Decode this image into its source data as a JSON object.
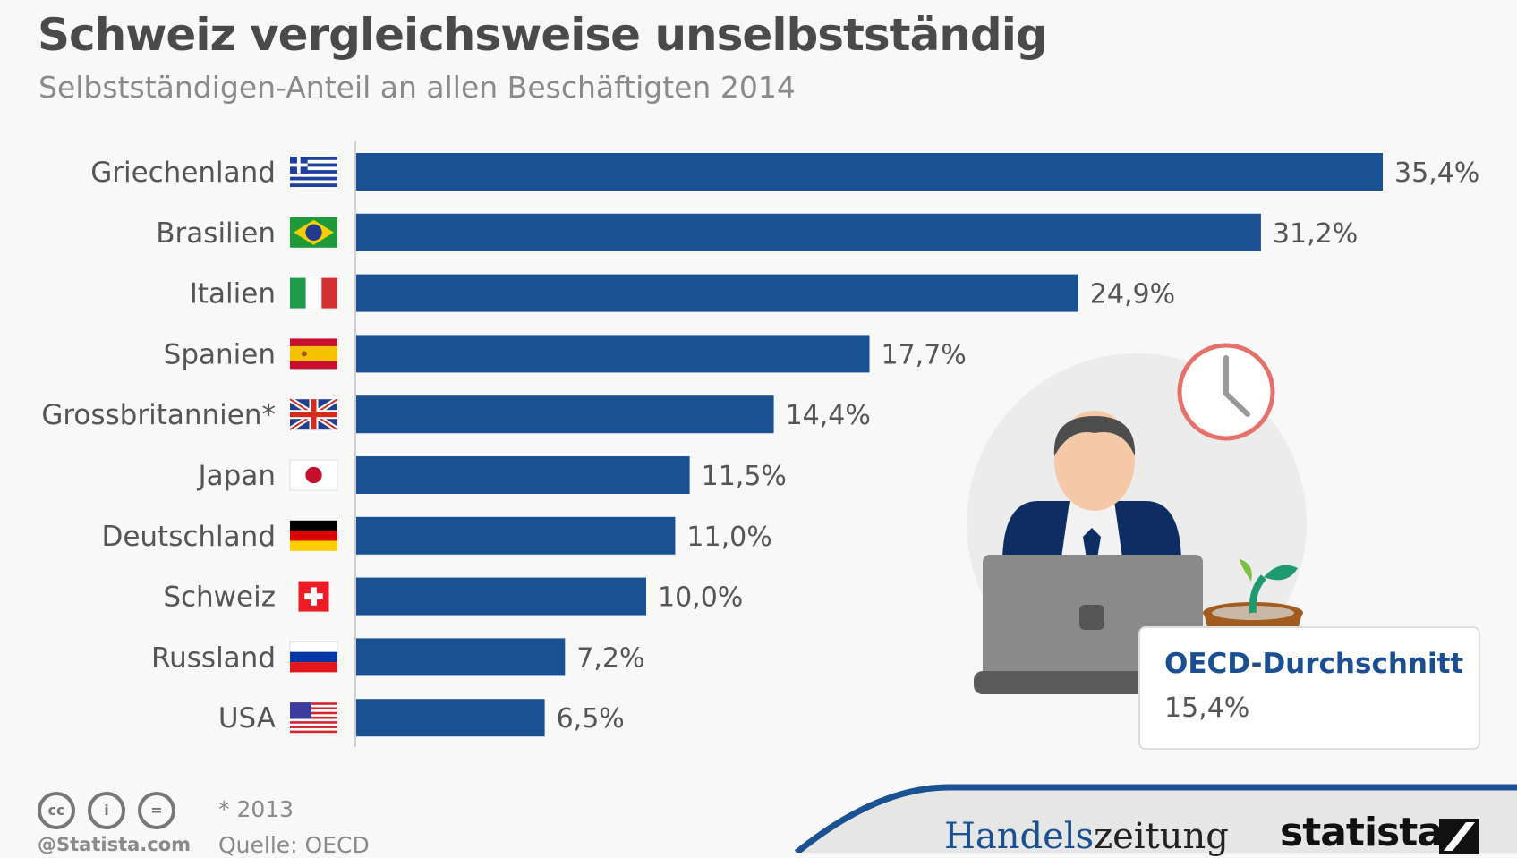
{
  "header": {
    "title": "Schweiz vergleichsweise unselbstständig",
    "subtitle": "Selbstständigen-Anteil an allen Beschäftigten 2014"
  },
  "chart_data": {
    "type": "bar",
    "orientation": "horizontal",
    "title": "Schweiz vergleichsweise unselbstständig",
    "subtitle": "Selbstständigen-Anteil an allen Beschäftigten 2014",
    "xlabel": "",
    "ylabel": "",
    "unit": "%",
    "categories": [
      "Griechenland",
      "Brasilien",
      "Italien",
      "Spanien",
      "Grossbritannien*",
      "Japan",
      "Deutschland",
      "Schweiz",
      "Russland",
      "USA"
    ],
    "values": [
      35.4,
      31.2,
      24.9,
      17.7,
      14.4,
      11.5,
      11.0,
      10.0,
      7.2,
      6.5
    ],
    "value_labels": [
      "35,4%",
      "31,2%",
      "24,9%",
      "17,7%",
      "14,4%",
      "11,5%",
      "11,0%",
      "10,0%",
      "7,2%",
      "6,5%"
    ],
    "flags": [
      "flag-greece",
      "flag-brazil",
      "flag-italy",
      "flag-spain",
      "flag-uk",
      "flag-japan",
      "flag-germany",
      "flag-switzerland",
      "flag-russia",
      "flag-usa"
    ],
    "xlim": [
      0,
      35.4
    ],
    "grid": false,
    "bar_color": "#1a5192",
    "annotation": {
      "label": "OECD-Durchschnitt",
      "value": "15,4%",
      "numeric": 15.4
    }
  },
  "callout": {
    "title": "OECD-Durchschnitt",
    "value": "15,4%"
  },
  "footer": {
    "note": "* 2013",
    "source": "Quelle: OECD",
    "credit": "@Statista.com",
    "license_icons": [
      "cc-icon",
      "by-icon",
      "nd-icon"
    ],
    "license_text": [
      "cc",
      "i",
      "="
    ],
    "brand1_a": "Handels",
    "brand1_b": "zeitung",
    "brand2": "statista"
  }
}
